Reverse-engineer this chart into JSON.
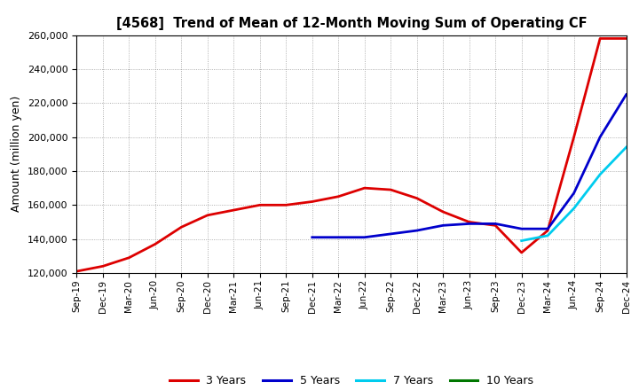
{
  "title": "[4568]  Trend of Mean of 12-Month Moving Sum of Operating CF",
  "ylabel": "Amount (million yen)",
  "background_color": "#ffffff",
  "grid_color": "#999999",
  "ylim": [
    120000,
    260000
  ],
  "yticks": [
    120000,
    140000,
    160000,
    180000,
    200000,
    220000,
    240000,
    260000
  ],
  "x_labels": [
    "Sep-19",
    "Dec-19",
    "Mar-20",
    "Jun-20",
    "Sep-20",
    "Dec-20",
    "Mar-21",
    "Jun-21",
    "Sep-21",
    "Dec-21",
    "Mar-22",
    "Jun-22",
    "Sep-22",
    "Dec-22",
    "Mar-23",
    "Jun-23",
    "Sep-23",
    "Dec-23",
    "Mar-24",
    "Jun-24",
    "Sep-24",
    "Dec-24"
  ],
  "series": {
    "3 Years": {
      "color": "#dd0000",
      "data_x": [
        0,
        1,
        2,
        3,
        4,
        5,
        6,
        7,
        8,
        9,
        10,
        11,
        12,
        13,
        14,
        15,
        16,
        17,
        18,
        19,
        20,
        21
      ],
      "data_y": [
        121000,
        124000,
        129000,
        137000,
        147000,
        154000,
        157000,
        160000,
        160000,
        162000,
        165000,
        170000,
        169000,
        164000,
        156000,
        150000,
        148000,
        132000,
        145000,
        200000,
        258000,
        258000
      ]
    },
    "5 Years": {
      "color": "#0000cc",
      "data_x": [
        9,
        10,
        11,
        12,
        13,
        14,
        15,
        16,
        17,
        18,
        19,
        20,
        21
      ],
      "data_y": [
        141000,
        141000,
        141000,
        143000,
        145000,
        148000,
        149000,
        149000,
        146000,
        146000,
        167000,
        200000,
        225000
      ]
    },
    "7 Years": {
      "color": "#00ccee",
      "data_x": [
        17,
        18,
        19,
        20,
        21
      ],
      "data_y": [
        139000,
        142000,
        158000,
        178000,
        194000
      ]
    },
    "10 Years": {
      "color": "#007700",
      "data_x": [],
      "data_y": []
    }
  },
  "legend_items": [
    "3 Years",
    "5 Years",
    "7 Years",
    "10 Years"
  ],
  "legend_colors": [
    "#dd0000",
    "#0000cc",
    "#00ccee",
    "#007700"
  ]
}
